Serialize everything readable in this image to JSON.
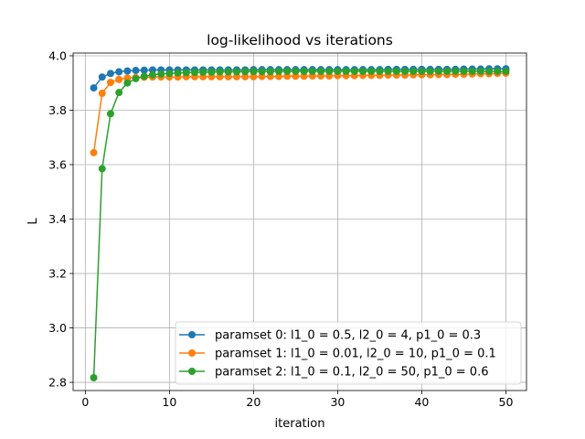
{
  "chart_data": {
    "type": "line",
    "title": "log-likelihood vs iterations",
    "xlabel": "iteration",
    "ylabel": "L",
    "xlim": [
      -1.45,
      52.45
    ],
    "ylim": [
      2.77,
      4.01
    ],
    "xticks": [
      0,
      10,
      20,
      30,
      40,
      50
    ],
    "yticks": [
      2.8,
      3.0,
      3.2,
      3.4,
      3.6,
      3.8,
      4.0
    ],
    "grid": true,
    "legend_position": "lower-right",
    "x": [
      1,
      2,
      3,
      4,
      5,
      6,
      7,
      8,
      9,
      10,
      11,
      12,
      13,
      14,
      15,
      16,
      17,
      18,
      19,
      20,
      21,
      22,
      23,
      24,
      25,
      26,
      27,
      28,
      29,
      30,
      31,
      32,
      33,
      34,
      35,
      36,
      37,
      38,
      39,
      40,
      41,
      42,
      43,
      44,
      45,
      46,
      47,
      48,
      49,
      50
    ],
    "series": [
      {
        "name": "paramset 0: l1_0 = 0.5, l2_0 = 4, p1_0 = 0.3",
        "color": "#1f77b4",
        "values": [
          3.882,
          3.922,
          3.935,
          3.941,
          3.944,
          3.946,
          3.947,
          3.948,
          3.948,
          3.948,
          3.948,
          3.948,
          3.948,
          3.948,
          3.948,
          3.948,
          3.948,
          3.948,
          3.948,
          3.949,
          3.949,
          3.949,
          3.949,
          3.949,
          3.949,
          3.949,
          3.949,
          3.949,
          3.949,
          3.949,
          3.949,
          3.949,
          3.949,
          3.949,
          3.949,
          3.95,
          3.95,
          3.95,
          3.95,
          3.95,
          3.95,
          3.95,
          3.95,
          3.95,
          3.951,
          3.951,
          3.951,
          3.952,
          3.952,
          3.952
        ]
      },
      {
        "name": "paramset 1: l1_0 = 0.01, l2_0 = 10, p1_0 = 0.1",
        "color": "#ff7f0e",
        "values": [
          3.644,
          3.862,
          3.902,
          3.913,
          3.918,
          3.92,
          3.921,
          3.922,
          3.922,
          3.922,
          3.922,
          3.923,
          3.923,
          3.923,
          3.923,
          3.923,
          3.923,
          3.923,
          3.923,
          3.923,
          3.924,
          3.924,
          3.924,
          3.925,
          3.925,
          3.925,
          3.926,
          3.926,
          3.926,
          3.927,
          3.927,
          3.927,
          3.928,
          3.928,
          3.928,
          3.929,
          3.929,
          3.929,
          3.93,
          3.93,
          3.93,
          3.931,
          3.931,
          3.932,
          3.932,
          3.933,
          3.934,
          3.934,
          3.935,
          3.936
        ]
      },
      {
        "name": "paramset 2: l1_0 = 0.1, l2_0 = 50, p1_0 = 0.6",
        "color": "#2ca02c",
        "values": [
          2.817,
          3.585,
          3.787,
          3.865,
          3.9,
          3.916,
          3.925,
          3.93,
          3.933,
          3.935,
          3.937,
          3.938,
          3.939,
          3.94,
          3.94,
          3.941,
          3.941,
          3.941,
          3.942,
          3.942,
          3.942,
          3.942,
          3.943,
          3.943,
          3.943,
          3.943,
          3.943,
          3.943,
          3.943,
          3.943,
          3.943,
          3.943,
          3.943,
          3.943,
          3.943,
          3.943,
          3.943,
          3.943,
          3.943,
          3.943,
          3.943,
          3.943,
          3.943,
          3.943,
          3.943,
          3.943,
          3.943,
          3.943,
          3.943,
          3.943
        ]
      }
    ]
  }
}
